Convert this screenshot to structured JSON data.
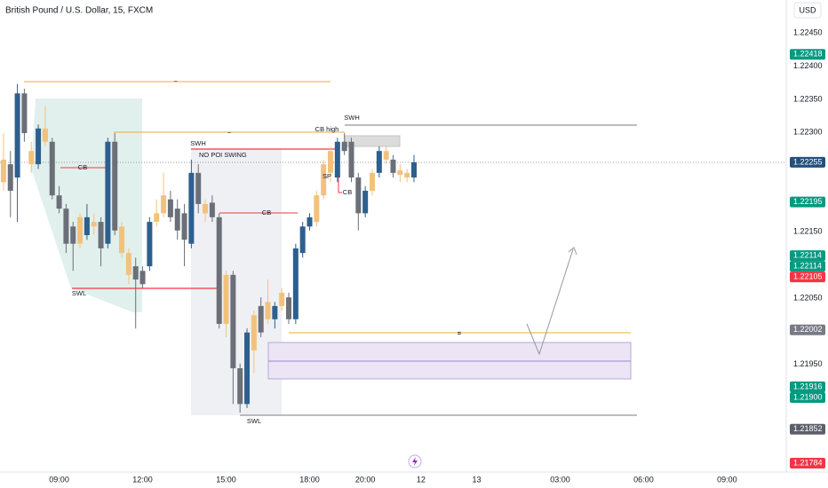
{
  "chart_data": {
    "type": "candlestick",
    "title": "British Pound / U.S. Dollar, 15, FXCM",
    "currency": "USD",
    "xlim": [
      -0.5,
      112.5
    ],
    "xticks": [
      {
        "value": 8,
        "label": "09:00"
      },
      {
        "value": 20,
        "label": "12:00"
      },
      {
        "value": 32,
        "label": "15:00"
      },
      {
        "value": 44,
        "label": "18:00"
      },
      {
        "value": 52,
        "label": "20:00"
      },
      {
        "value": 60,
        "label": "12"
      },
      {
        "value": 68,
        "label": "13"
      },
      {
        "value": 80,
        "label": "03:00"
      },
      {
        "value": 92,
        "label": "06:00"
      },
      {
        "value": 104,
        "label": "09:00"
      }
    ],
    "ylim": [
      1.2179,
      1.225
    ],
    "yticks": [
      {
        "value": 1.2245,
        "label": "1.22450"
      },
      {
        "value": 1.224,
        "label": "1.22400"
      },
      {
        "value": 1.2235,
        "label": "1.22350"
      },
      {
        "value": 1.223,
        "label": "1.22300"
      },
      {
        "value": 1.2215,
        "label": "1.22150"
      },
      {
        "value": 1.2205,
        "label": "1.22050"
      },
      {
        "value": 1.2195,
        "label": "1.21950"
      }
    ],
    "grid": false,
    "open": [
      1.22225,
      1.22252,
      1.22232,
      1.22359,
      1.22252,
      1.22252,
      1.22286,
      1.22286,
      1.22205,
      1.22185,
      1.22158,
      1.22132,
      1.22145,
      1.22158,
      1.22165,
      1.22132,
      1.22286,
      1.22118,
      1.22085,
      1.22098,
      1.22091,
      1.22098,
      1.22165,
      1.22178,
      1.22199,
      1.22185,
      1.22178,
      1.22132,
      1.22239,
      1.22178,
      1.22194,
      1.22172,
      1.22011,
      1.22085,
      1.21944,
      1.2189,
      1.21971,
      1.22038,
      1.22018,
      1.22018,
      1.22038,
      1.22051,
      1.22018,
      1.22118,
      1.22158,
      1.22165,
      1.22205,
      1.22239,
      1.22232,
      1.22286,
      1.22286,
      1.22232,
      1.22178,
      1.22212,
      1.22239,
      1.22259,
      1.22259,
      1.22236,
      1.22232,
      1.22232
    ],
    "high": [
      1.22299,
      1.22272,
      1.22373,
      1.22366,
      1.22286,
      1.22312,
      1.22339,
      1.22292,
      1.22219,
      1.22192,
      1.22165,
      1.22178,
      1.22192,
      1.22178,
      1.22172,
      1.22292,
      1.22299,
      1.22165,
      1.22125,
      1.22111,
      1.22098,
      1.22172,
      1.22199,
      1.22239,
      1.22212,
      1.22199,
      1.22192,
      1.22259,
      1.22252,
      1.22199,
      1.22205,
      1.22178,
      1.22091,
      1.22091,
      1.21951,
      1.22004,
      1.22031,
      1.22051,
      1.22078,
      1.22044,
      1.22065,
      1.22058,
      1.22132,
      1.22165,
      1.22178,
      1.22212,
      1.22259,
      1.22279,
      1.22292,
      1.22299,
      1.22292,
      1.22239,
      1.22219,
      1.22245,
      1.22279,
      1.22279,
      1.22266,
      1.22252,
      1.22245,
      1.22266
    ],
    "low": [
      1.22212,
      1.22172,
      1.22165,
      1.22286,
      1.22239,
      1.22245,
      1.22279,
      1.22199,
      1.22178,
      1.22118,
      1.22091,
      1.22125,
      1.22138,
      1.22145,
      1.22098,
      1.22125,
      1.22145,
      1.22111,
      1.22071,
      1.22004,
      1.22065,
      1.22091,
      1.22158,
      1.22172,
      1.22165,
      1.22138,
      1.22098,
      1.22125,
      1.22178,
      1.22165,
      1.22165,
      1.22004,
      1.21991,
      1.2189,
      1.21877,
      1.21884,
      1.21937,
      1.21991,
      1.22011,
      1.22004,
      1.22031,
      1.22011,
      1.22011,
      1.22111,
      1.22152,
      1.22158,
      1.22199,
      1.22225,
      1.22225,
      1.22266,
      1.22225,
      1.22152,
      1.22172,
      1.22205,
      1.22232,
      1.22252,
      1.22232,
      1.22225,
      1.22225,
      1.22225
    ],
    "close": [
      1.22259,
      1.22212,
      1.22359,
      1.22299,
      1.22272,
      1.22306,
      1.22306,
      1.22205,
      1.22185,
      1.22132,
      1.22132,
      1.22172,
      1.22172,
      1.22165,
      1.22125,
      1.22286,
      1.22152,
      1.22158,
      1.22118,
      1.22078,
      1.22071,
      1.22165,
      1.22178,
      1.22205,
      1.22172,
      1.22152,
      1.22138,
      1.22239,
      1.22192,
      1.22192,
      1.22172,
      1.22011,
      1.22085,
      1.21944,
      1.2189,
      1.21998,
      1.22024,
      1.21998,
      1.22044,
      1.22038,
      1.22058,
      1.22018,
      1.22125,
      1.22158,
      1.22172,
      1.22205,
      1.22252,
      1.22272,
      1.22286,
      1.22272,
      1.22232,
      1.22178,
      1.22212,
      1.22239,
      1.22272,
      1.22272,
      1.22239,
      1.22243,
      1.22239,
      1.22255
    ],
    "candle_colors": [
      "#f2c27d",
      "#6b6f78",
      "#2e5f8e",
      "#6b6f78",
      "#f2c27d",
      "#2e5f8e",
      "#f2c27d",
      "#6b6f78",
      "#6b6f78",
      "#6b6f78",
      "#6b6f78",
      "#f2c27d",
      "#2e5f8e",
      "#f2c27d",
      "#6b6f78",
      "#2e5f8e",
      "#6b6f78",
      "#f2c27d",
      "#f2c27d",
      "#6b6f78",
      "#6b6f78",
      "#2e5f8e",
      "#f2c27d",
      "#f2c27d",
      "#6b6f78",
      "#6b6f78",
      "#6b6f78",
      "#2e5f8e",
      "#6b6f78",
      "#f2c27d",
      "#6b6f78",
      "#6b6f78",
      "#f2c27d",
      "#6b6f78",
      "#6b6f78",
      "#2e5f8e",
      "#f2c27d",
      "#6b6f78",
      "#f2c27d",
      "#2e5f8e",
      "#f2c27d",
      "#6b6f78",
      "#2e5f8e",
      "#2e5f8e",
      "#2e5f8e",
      "#f2c27d",
      "#f2c27d",
      "#f2c27d",
      "#2e5f8e",
      "#6b6f78",
      "#6b6f78",
      "#6b6f78",
      "#2e5f8e",
      "#f2c27d",
      "#2e5f8e",
      "#f2c27d",
      "#6b6f78",
      "#f2c27d",
      "#f2c27d",
      "#2e5f8e"
    ],
    "price_labels": [
      {
        "value": 1.22418,
        "label": "1.22418",
        "color": "#089981"
      },
      {
        "value": 1.22255,
        "label": "1.22255",
        "color": "#24507c"
      },
      {
        "value": 1.22195,
        "label": "1.22195",
        "color": "#089981"
      },
      {
        "value": 1.22114,
        "label": "1.22114",
        "color": "#089981"
      },
      {
        "value": 1.22114,
        "label": "1.22114",
        "color": "#089981"
      },
      {
        "value": 1.22105,
        "label": "1.22105",
        "color": "#f23645"
      },
      {
        "value": 1.22002,
        "label": "1.22002",
        "color": "#787b86"
      },
      {
        "value": 1.21916,
        "label": "1.21916",
        "color": "#089981"
      },
      {
        "value": 1.219,
        "label": "1.21900",
        "color": "#089981"
      },
      {
        "value": 1.21852,
        "label": "1.21852",
        "color": "#5d606b"
      },
      {
        "value": 1.21784,
        "label": "1.21784",
        "color": "#f23645"
      }
    ],
    "annotations": {
      "swl_left": "SWL",
      "swl_bottom": "SWL",
      "swh_mid": "SWH",
      "swh_right": "SWH",
      "cb_left": "CB",
      "cb_mid": "CB",
      "cb_right": "CB",
      "cb_high": "CB high",
      "no_poi": "NO POI SWING",
      "sp": "SP",
      "tilde_1": "~",
      "tilde_2": "~",
      "equal": "="
    }
  }
}
